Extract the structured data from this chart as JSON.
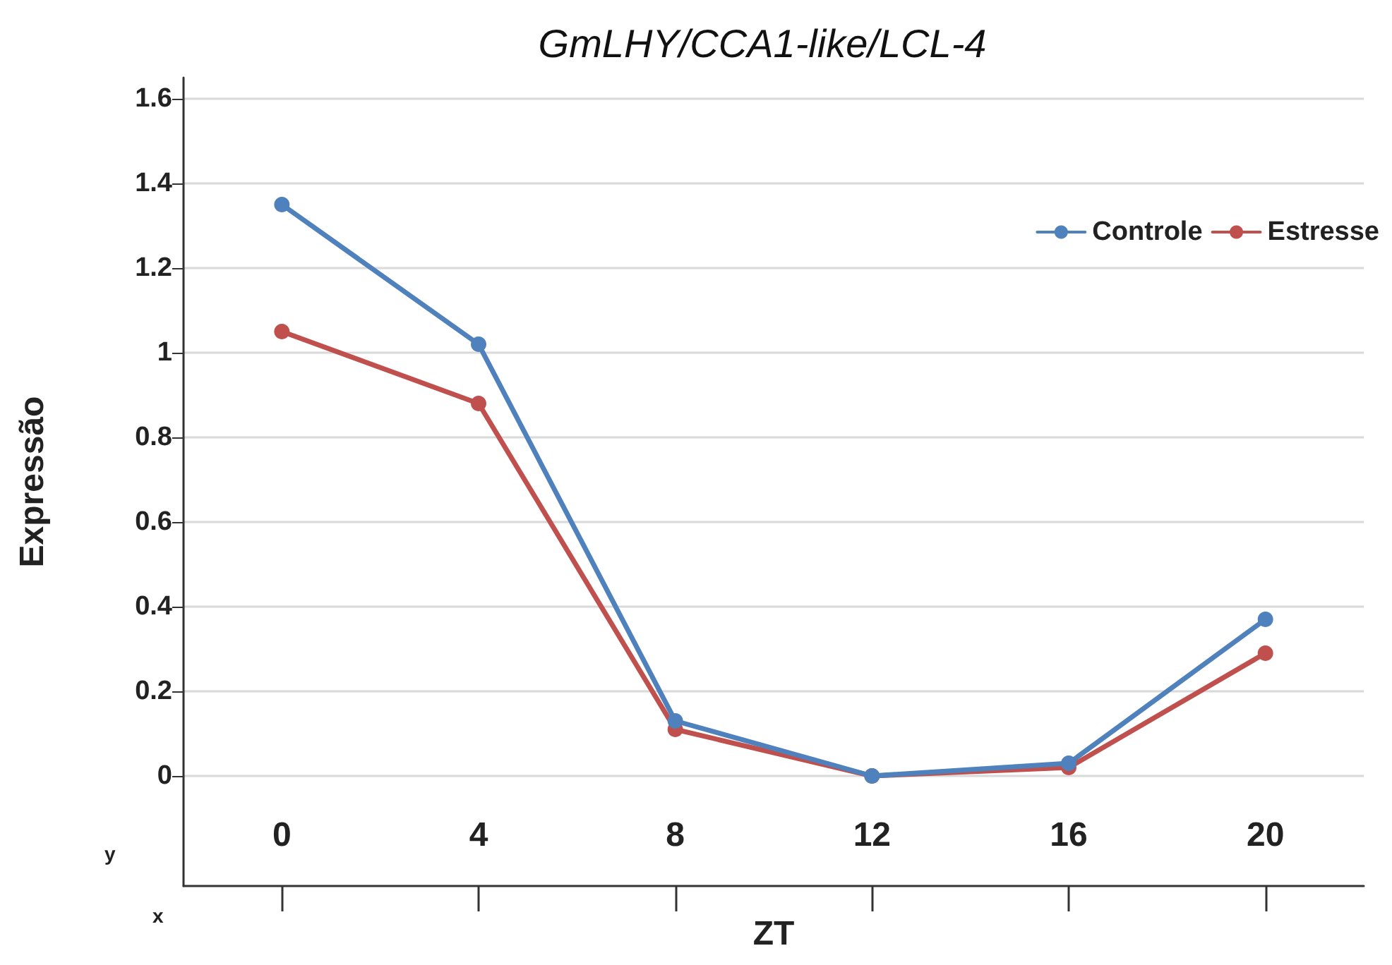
{
  "chart_data": {
    "type": "line",
    "title": "GmLHY/CCA1-like/LCL-4",
    "xlabel": "ZT",
    "ylabel": "Expressão",
    "categories": [
      "0",
      "4",
      "8",
      "12",
      "16",
      "20"
    ],
    "series": [
      {
        "name": "Controle",
        "color": "#4f81bd",
        "values": [
          1.35,
          1.02,
          0.13,
          0.0,
          0.03,
          0.37
        ]
      },
      {
        "name": "Estresse",
        "color": "#c0504d",
        "values": [
          1.05,
          0.88,
          0.11,
          0.0,
          0.02,
          0.29
        ]
      }
    ],
    "ylim": [
      -0.26,
      1.65
    ],
    "yticks": [
      0,
      0.2,
      0.4,
      0.6,
      0.8,
      1,
      1.2,
      1.4,
      1.6
    ],
    "grid": "y",
    "legend": "top right",
    "marker": "circle",
    "line_style": "solid",
    "annotations": [
      "y",
      "x"
    ]
  }
}
